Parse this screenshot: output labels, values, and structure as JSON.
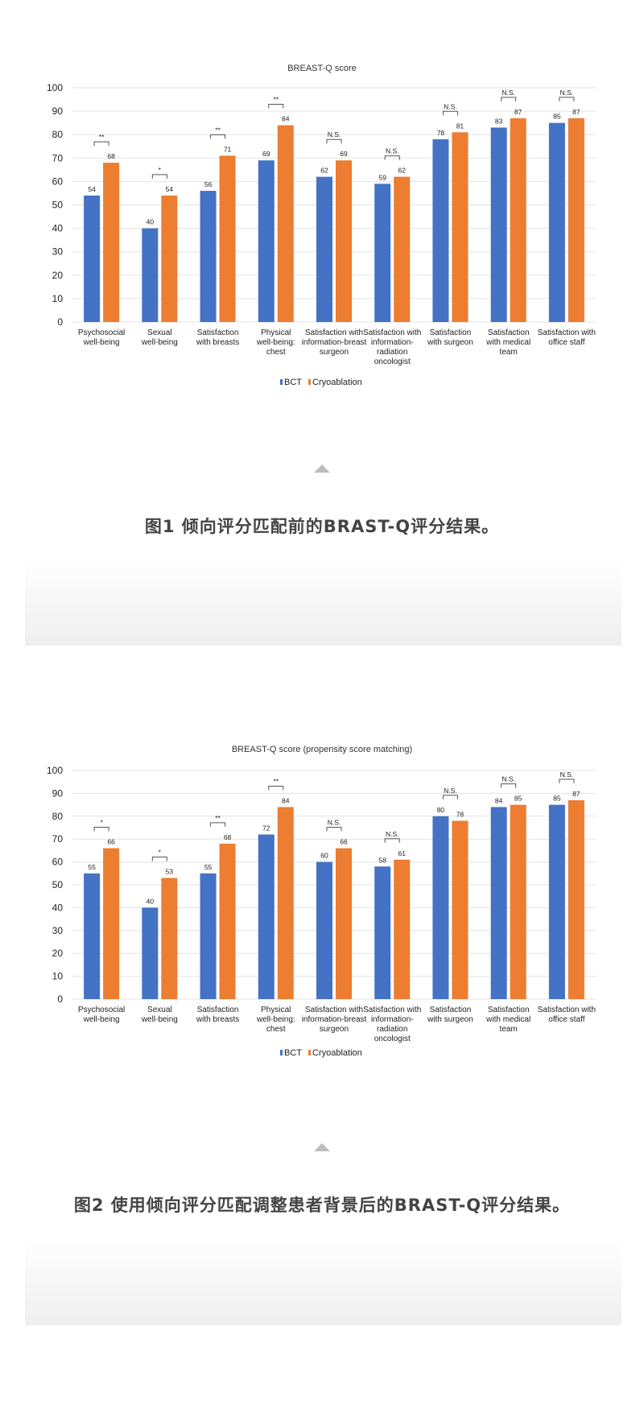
{
  "colors": {
    "BCT": "#4472c4",
    "Cryoablation": "#ed7d31"
  },
  "icons": {
    "divider": "triangle-up-icon"
  },
  "captions": [
    "图1 倾向评分匹配前的BRAST-Q评分结果。",
    "图2 使用倾向评分匹配调整患者背景后的BRAST-Q评分结果。"
  ],
  "chart_data": [
    {
      "type": "bar",
      "title": "BREAST-Q score",
      "categories": [
        [
          "Psychosocial",
          "well-being"
        ],
        [
          "Sexual",
          "well-being"
        ],
        [
          "Satisfaction",
          "with breasts"
        ],
        [
          "Physical",
          "well-being:",
          "chest"
        ],
        [
          "Satisfaction with",
          "information-breast",
          "surgeon"
        ],
        [
          "Satisfaction with",
          "information-",
          "radiation",
          "oncologist"
        ],
        [
          "Satisfaction",
          "with surgeon"
        ],
        [
          "Satisfaction",
          "with medical",
          "team"
        ],
        [
          "Satisfaction with",
          "office staff"
        ]
      ],
      "series": [
        {
          "name": "BCT",
          "values": [
            54,
            40,
            56,
            69,
            62,
            59,
            78,
            83,
            85
          ]
        },
        {
          "name": "Cryoablation",
          "values": [
            68,
            54,
            71,
            84,
            69,
            62,
            81,
            87,
            87
          ]
        }
      ],
      "significance": [
        "**",
        "*",
        "**",
        "**",
        "N.S.",
        "N.S.",
        "N.S.",
        "N.S.",
        "N.S."
      ],
      "ylim": [
        0,
        100
      ],
      "yticks": [
        0,
        10,
        20,
        30,
        40,
        50,
        60,
        70,
        80,
        90,
        100
      ],
      "grid": true,
      "legend": "bottom"
    },
    {
      "type": "bar",
      "title": "BREAST-Q score (propensity score matching)",
      "categories": [
        [
          "Psychosocial",
          "well-being"
        ],
        [
          "Sexual",
          "well-being"
        ],
        [
          "Satisfaction",
          "with breasts"
        ],
        [
          "Physical",
          "well-being:",
          "chest"
        ],
        [
          "Satisfaction with",
          "information-breast",
          "surgeon"
        ],
        [
          "Satisfaction with",
          "information-",
          "radiation",
          "oncologist"
        ],
        [
          "Satisfaction",
          "with surgeon"
        ],
        [
          "Satisfaction",
          "with medical",
          "team"
        ],
        [
          "Satisfaction with",
          "office staff"
        ]
      ],
      "series": [
        {
          "name": "BCT",
          "values": [
            55,
            40,
            55,
            72,
            60,
            58,
            80,
            84,
            85
          ]
        },
        {
          "name": "Cryoablation",
          "values": [
            66,
            53,
            68,
            84,
            66,
            61,
            78,
            85,
            87
          ]
        }
      ],
      "significance": [
        "*",
        "*",
        "**",
        "**",
        "N.S.",
        "N.S.",
        "N.S.",
        "N.S.",
        "N.S."
      ],
      "ylim": [
        0,
        100
      ],
      "yticks": [
        0,
        10,
        20,
        30,
        40,
        50,
        60,
        70,
        80,
        90,
        100
      ],
      "grid": true,
      "legend": "bottom"
    }
  ]
}
